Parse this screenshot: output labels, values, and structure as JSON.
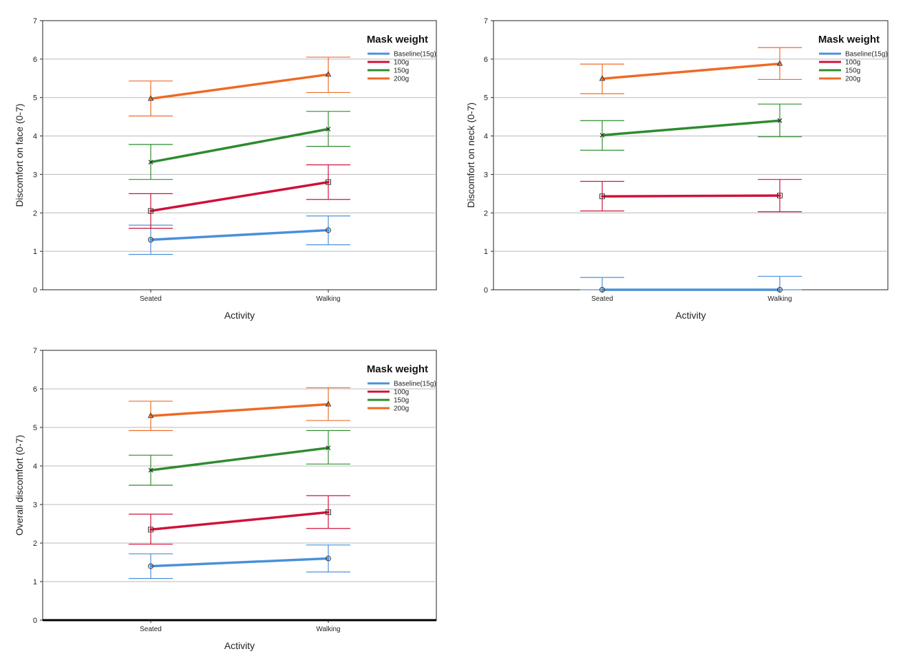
{
  "legend_title": "Mask weight",
  "series_meta": [
    {
      "name": "Baseline(15g)",
      "color": "#4a90d9",
      "marker": "circle"
    },
    {
      "name": "100g",
      "color": "#d0103a",
      "marker": "square"
    },
    {
      "name": "150g",
      "color": "#2e8b2e",
      "marker": "x"
    },
    {
      "name": "200g",
      "color": "#ee6a24",
      "marker": "triangle"
    }
  ],
  "chart_data": [
    {
      "type": "line",
      "xlabel": "Activity",
      "ylabel": "Discomfort on face (0-7)",
      "categories": [
        "Seated",
        "Walking"
      ],
      "ylim": [
        0,
        7
      ],
      "yticks": [
        "0",
        "1",
        "2",
        "3",
        "4",
        "5",
        "6",
        "7"
      ],
      "grid": true,
      "legend_position": "top-right",
      "series": [
        {
          "name": "Baseline(15g)",
          "values": [
            1.3,
            1.55
          ],
          "error_low": [
            0.92,
            1.17
          ],
          "error_high": [
            1.68,
            1.92
          ]
        },
        {
          "name": "100g",
          "values": [
            2.05,
            2.8
          ],
          "error_low": [
            1.6,
            2.35
          ],
          "error_high": [
            2.5,
            3.25
          ]
        },
        {
          "name": "150g",
          "values": [
            3.32,
            4.18
          ],
          "error_low": [
            2.87,
            3.73
          ],
          "error_high": [
            3.78,
            4.64
          ]
        },
        {
          "name": "200g",
          "values": [
            4.97,
            5.6
          ],
          "error_low": [
            4.52,
            5.13
          ],
          "error_high": [
            5.43,
            6.05
          ]
        }
      ]
    },
    {
      "type": "line",
      "xlabel": "Activity",
      "ylabel": "Discomfort on neck (0-7)",
      "categories": [
        "Seated",
        "Walking"
      ],
      "ylim": [
        0,
        7
      ],
      "yticks": [
        "0",
        "1",
        "2",
        "3",
        "4",
        "5",
        "6",
        "7"
      ],
      "grid": true,
      "legend_position": "top-right",
      "series": [
        {
          "name": "Baseline(15g)",
          "values": [
            0.0,
            0.0
          ],
          "error_low": [
            0.0,
            0.0
          ],
          "error_high": [
            0.32,
            0.35
          ]
        },
        {
          "name": "100g",
          "values": [
            2.43,
            2.45
          ],
          "error_low": [
            2.05,
            2.03
          ],
          "error_high": [
            2.82,
            2.87
          ]
        },
        {
          "name": "150g",
          "values": [
            4.02,
            4.4
          ],
          "error_low": [
            3.63,
            3.98
          ],
          "error_high": [
            4.4,
            4.83
          ]
        },
        {
          "name": "200g",
          "values": [
            5.49,
            5.88
          ],
          "error_low": [
            5.1,
            5.47
          ],
          "error_high": [
            5.87,
            6.3
          ]
        }
      ]
    },
    {
      "type": "line",
      "xlabel": "Activity",
      "ylabel": "Overall discomfort (0-7)",
      "categories": [
        "Seated",
        "Walking"
      ],
      "ylim": [
        0,
        7
      ],
      "yticks": [
        "0",
        "1",
        "2",
        "3",
        "4",
        "5",
        "6",
        "7"
      ],
      "grid": true,
      "legend_position": "top-right",
      "series": [
        {
          "name": "Baseline(15g)",
          "values": [
            1.4,
            1.6
          ],
          "error_low": [
            1.08,
            1.25
          ],
          "error_high": [
            1.72,
            1.95
          ]
        },
        {
          "name": "100g",
          "values": [
            2.35,
            2.8
          ],
          "error_low": [
            1.97,
            2.38
          ],
          "error_high": [
            2.75,
            3.23
          ]
        },
        {
          "name": "150g",
          "values": [
            3.89,
            4.47
          ],
          "error_low": [
            3.5,
            4.05
          ],
          "error_high": [
            4.28,
            4.92
          ]
        },
        {
          "name": "200g",
          "values": [
            5.3,
            5.6
          ],
          "error_low": [
            4.92,
            5.18
          ],
          "error_high": [
            5.68,
            6.03
          ]
        }
      ]
    }
  ]
}
